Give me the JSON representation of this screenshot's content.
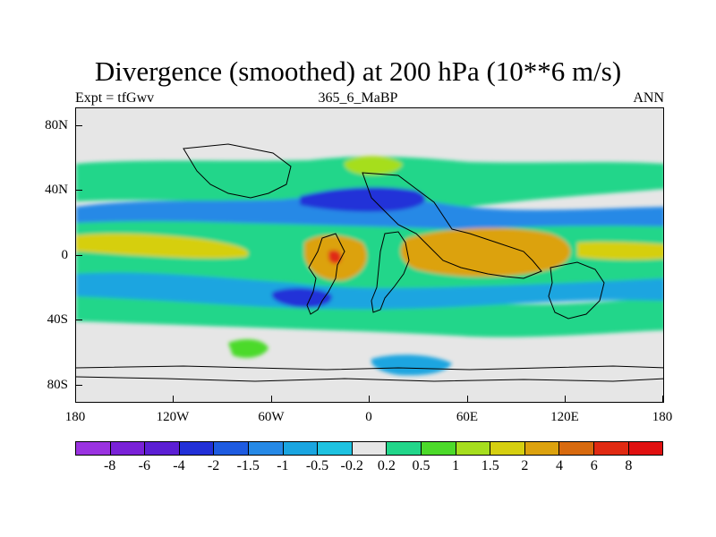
{
  "title": "Divergence (smoothed) at 200 hPa (10**6 m/s)",
  "subtitle_left": "Expt = tfGwv",
  "subtitle_center": "365_6_MaBP",
  "subtitle_right": "ANN",
  "lat_labels": [
    "80N",
    "40N",
    "0",
    "40S",
    "80S"
  ],
  "lon_labels": [
    "180",
    "120W",
    "60W",
    "0",
    "60E",
    "120E",
    "180"
  ],
  "colorbar": {
    "colors": [
      "#9A33E0",
      "#7A22D8",
      "#5C1FD4",
      "#2230D8",
      "#1E5BE0",
      "#2689E6",
      "#1AA5E0",
      "#1EC2E0",
      "#E6E6E6",
      "#22D68A",
      "#4CDA2A",
      "#A6DE1E",
      "#D6CF10",
      "#DCA20E",
      "#D86A0E",
      "#E02A12",
      "#E01010"
    ],
    "labels": [
      "-8",
      "-6",
      "-4",
      "-2",
      "-1.5",
      "-1",
      "-0.5",
      "-0.2",
      "0.2",
      "0.5",
      "1",
      "1.5",
      "2",
      "4",
      "6",
      "8"
    ]
  }
}
